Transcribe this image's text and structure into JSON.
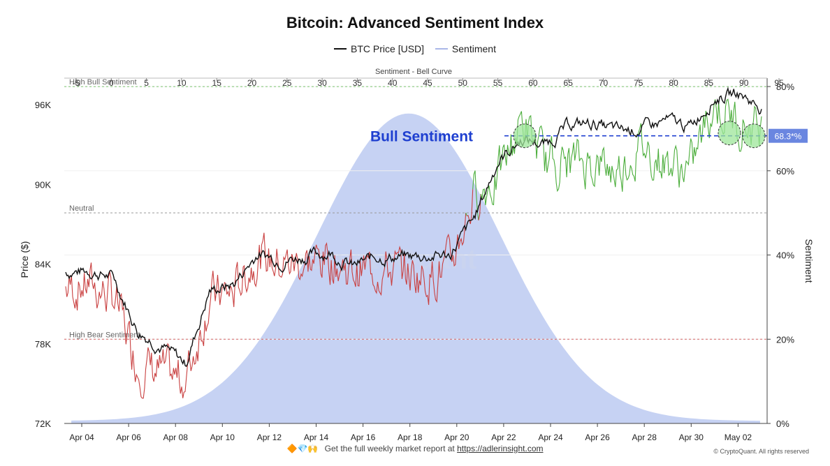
{
  "chart_data": {
    "type": "line",
    "title": "Bitcoin: Advanced Sentiment Index",
    "legend": [
      "BTC Price [USD]",
      "Sentiment"
    ],
    "legend_placement": "top-center",
    "colors": {
      "price": "#111111",
      "sentiment_bear": "#c94040",
      "sentiment_bull": "#4cae3c",
      "bell_fill": "#c6d2f3",
      "bull_line": "#1e3fd0",
      "bull_badge": "#6a86e0",
      "high_bull_line": "#79c26e",
      "high_bear_line": "#d46262",
      "neutral_line": "#999999",
      "circle_fill": "#9ee59a"
    },
    "left_axis": {
      "label": "Price ($)",
      "ticks": [
        "72K",
        "78K",
        "84K",
        "90K",
        "96K"
      ],
      "ylim": [
        72000,
        98000
      ]
    },
    "right_axis": {
      "label": "Sentiment",
      "ticks": [
        "0%",
        "20%",
        "40%",
        "60%",
        "80%"
      ],
      "ylim": [
        0,
        82
      ]
    },
    "top_axis": {
      "label": "Sentiment - Bell Curve",
      "ticks": [
        "-5",
        "0",
        "5",
        "10",
        "15",
        "20",
        "25",
        "30",
        "35",
        "40",
        "45",
        "50",
        "55",
        "60",
        "65",
        "70",
        "75",
        "80",
        "85",
        "90",
        "95"
      ],
      "xlim": [
        -5,
        95
      ]
    },
    "x_ticks": [
      "Apr 04",
      "Apr 06",
      "Apr 08",
      "Apr 10",
      "Apr 12",
      "Apr 14",
      "Apr 16",
      "Apr 18",
      "Apr 20",
      "Apr 22",
      "Apr 24",
      "Apr 26",
      "Apr 28",
      "Apr 30",
      "May 02"
    ],
    "reference_lines": [
      {
        "label": "High Bull Sentiment",
        "value": 80
      },
      {
        "label": "Neutral",
        "value": 50
      },
      {
        "label": "High Bear Sentiment",
        "value": 20
      }
    ],
    "bull_annotation": {
      "text": "Bull Sentiment",
      "value_label": "68.3*%",
      "value": 68.3
    },
    "bell_curve": {
      "mean": 44,
      "sd": 13,
      "peak_pct": 73
    },
    "price_points": [
      [
        "Apr 04",
        83400
      ],
      [
        "Apr 05",
        83500
      ],
      [
        "Apr 06",
        83000
      ],
      [
        "Apr 07",
        79000
      ],
      [
        "Apr 08",
        77800
      ],
      [
        "Apr 09",
        76500
      ],
      [
        "Apr 10",
        82000
      ],
      [
        "Apr 11",
        82500
      ],
      [
        "Apr 12",
        84800
      ],
      [
        "Apr 13",
        84300
      ],
      [
        "Apr 14",
        84600
      ],
      [
        "Apr 15",
        84900
      ],
      [
        "Apr 16",
        83800
      ],
      [
        "Apr 17",
        84600
      ],
      [
        "Apr 18",
        84500
      ],
      [
        "Apr 19",
        84600
      ],
      [
        "Apr 20",
        84700
      ],
      [
        "Apr 21",
        87300
      ],
      [
        "Apr 22",
        91700
      ],
      [
        "Apr 23",
        93400
      ],
      [
        "Apr 24",
        93000
      ],
      [
        "Apr 25",
        94500
      ],
      [
        "Apr 26",
        94600
      ],
      [
        "Apr 27",
        94000
      ],
      [
        "Apr 28",
        94200
      ],
      [
        "Apr 29",
        94800
      ],
      [
        "Apr 30",
        94300
      ],
      [
        "May 01",
        96500
      ],
      [
        "May 02",
        96900
      ],
      [
        "May 03",
        95800
      ]
    ],
    "sentiment_points": [
      [
        "Apr 04",
        32
      ],
      [
        "Apr 05",
        33
      ],
      [
        "Apr 06",
        30
      ],
      [
        "Apr 07",
        14
      ],
      [
        "Apr 08",
        12
      ],
      [
        "Apr 09",
        10
      ],
      [
        "Apr 10",
        30
      ],
      [
        "Apr 11",
        31
      ],
      [
        "Apr 12",
        40
      ],
      [
        "Apr 13",
        38
      ],
      [
        "Apr 14",
        38
      ],
      [
        "Apr 15",
        39
      ],
      [
        "Apr 16",
        36
      ],
      [
        "Apr 17",
        37
      ],
      [
        "Apr 18",
        36
      ],
      [
        "Apr 19",
        35
      ],
      [
        "Apr 20",
        37
      ],
      [
        "Apr 21",
        54
      ],
      [
        "Apr 22",
        58
      ],
      [
        "Apr 23",
        72
      ],
      [
        "Apr 24",
        62
      ],
      [
        "Apr 25",
        62
      ],
      [
        "Apr 26",
        62
      ],
      [
        "Apr 27",
        60
      ],
      [
        "Apr 28",
        66
      ],
      [
        "Apr 29",
        62
      ],
      [
        "Apr 30",
        60
      ],
      [
        "May 01",
        76
      ],
      [
        "May 02",
        72
      ],
      [
        "May 03",
        70
      ]
    ],
    "watermark": "CryptoQuant"
  },
  "footer": {
    "promo_icons": "🔶💎🙌",
    "promo_text": "Get the full weekly market report at",
    "promo_link": "https://adlerinsight.com",
    "copyright": "© CryptoQuant. All rights reserved"
  }
}
